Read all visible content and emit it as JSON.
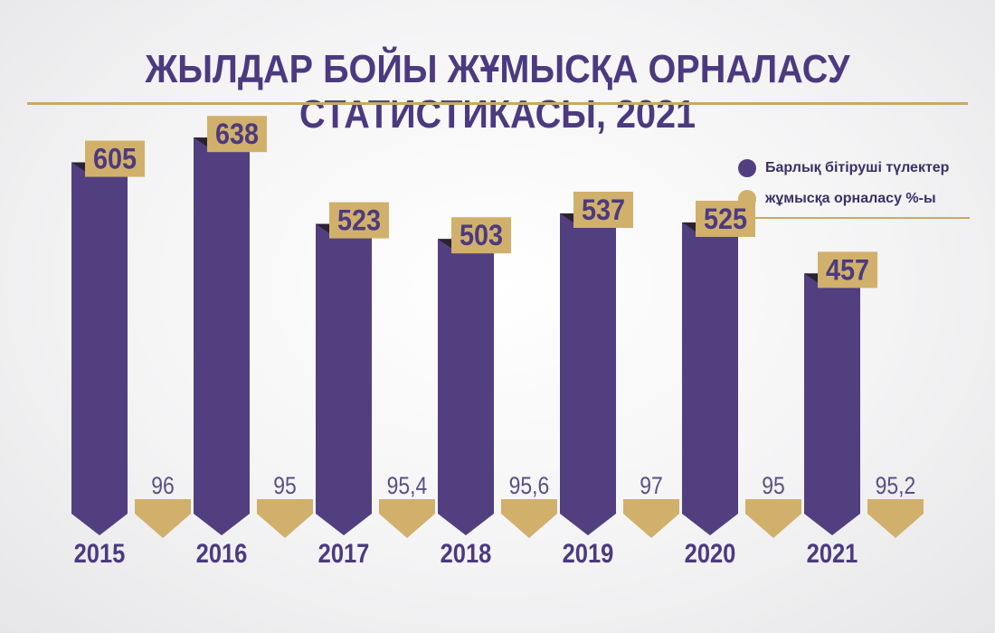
{
  "title": "ЖЫЛДАР БОЙЫ ЖҰМЫСҚА ОРНАЛАСУ СТАТИСТИКАСЫ, 2021",
  "colors": {
    "primary": "#523f80",
    "gold": "#d1b06b",
    "text_dark": "#4c3a80",
    "pct_text": "#5b4e86"
  },
  "legend": {
    "graduates_label": "Барлық бітіруші түлектер",
    "employment_label": "жұмысқа орналасу %-ы"
  },
  "chart_data": {
    "type": "bar",
    "title": "ЖЫЛДАР БОЙЫ ЖҰМЫСҚА ОРНАЛАСУ СТАТИСТИКАСЫ, 2021",
    "categories": [
      "2015",
      "2016",
      "2017",
      "2018",
      "2019",
      "2020",
      "2021"
    ],
    "series": [
      {
        "name": "Барлық бітіруші түлектер",
        "values": [
          605,
          638,
          523,
          503,
          537,
          525,
          457
        ]
      },
      {
        "name": "жұмысқа орналасу %-ы",
        "values": [
          96,
          95,
          95.4,
          95.6,
          97,
          95,
          95.2
        ]
      }
    ],
    "value_labels": [
      "605",
      "638",
      "523",
      "503",
      "537",
      "525",
      "457"
    ],
    "percent_labels": [
      "96",
      "95",
      "95,4",
      "95,6",
      "97",
      "95",
      "95,2"
    ],
    "legend_position": "top-right",
    "grid": false
  }
}
